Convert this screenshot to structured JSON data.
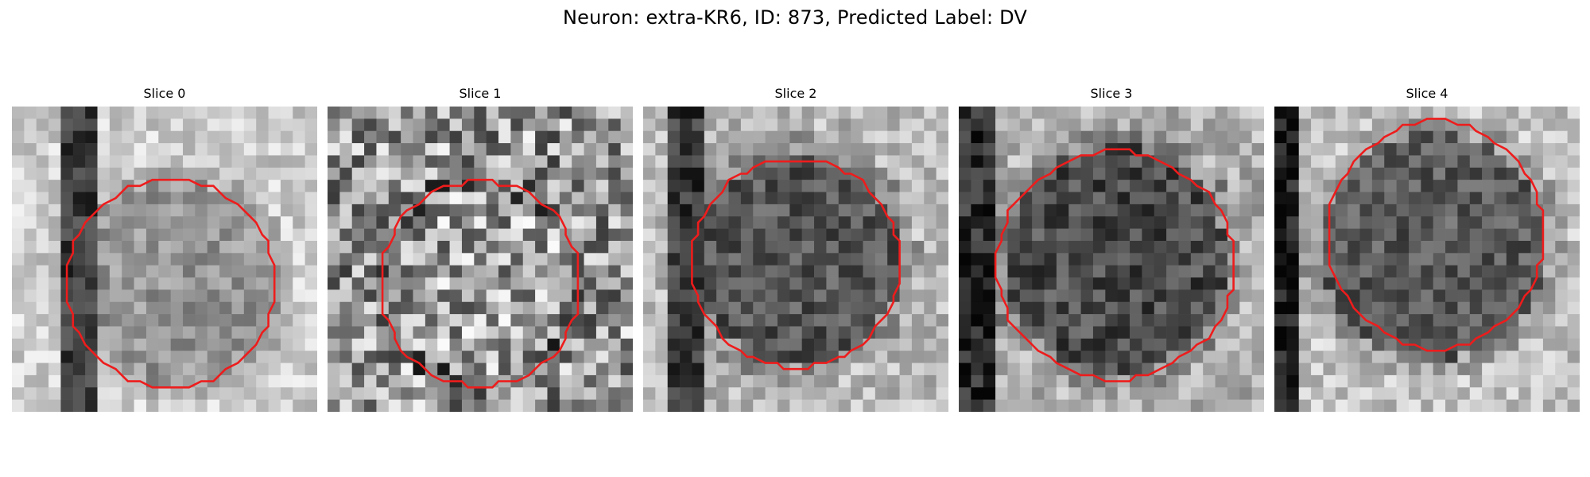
{
  "figure": {
    "title": "Neuron: extra-KR6, ID: 873, Predicted Label: DV"
  },
  "colors": {
    "contour": "#ee1c1c",
    "background": "#ffffff"
  },
  "panels": [
    {
      "title": "Slice 0",
      "variant": "light",
      "contour": "circle-clipped-bottom"
    },
    {
      "title": "Slice 1",
      "variant": "noisy",
      "contour": "circle-small"
    },
    {
      "title": "Slice 2",
      "variant": "dark-cell",
      "contour": "circle"
    },
    {
      "title": "Slice 3",
      "variant": "dark-cell",
      "contour": "circle-large"
    },
    {
      "title": "Slice 4",
      "variant": "dark-cell",
      "contour": "circle-tall"
    }
  ]
}
